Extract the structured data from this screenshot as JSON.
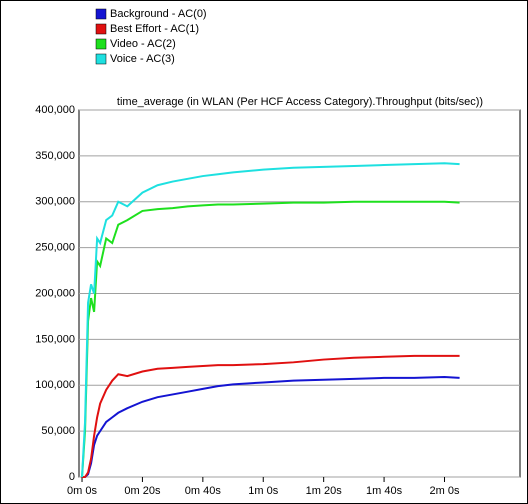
{
  "chart_data": {
    "type": "line",
    "title": "time_average (in WLAN (Per HCF Access Category).Throughput (bits/sec))",
    "x": [
      0,
      1,
      2,
      3,
      4,
      5,
      6,
      8,
      10,
      12,
      15,
      20,
      25,
      30,
      35,
      40,
      45,
      50,
      60,
      70,
      80,
      90,
      100,
      110,
      120,
      125
    ],
    "series": [
      {
        "name": "Background - AC(0)",
        "color": "#1414d2",
        "values": [
          0,
          0,
          3000,
          15000,
          35000,
          45000,
          50000,
          60000,
          65000,
          70000,
          75000,
          82000,
          87000,
          90000,
          93000,
          96000,
          99000,
          101000,
          103000,
          105000,
          106000,
          107000,
          108000,
          108000,
          109000,
          108000
        ]
      },
      {
        "name": "Best Effort - AC(1)",
        "color": "#e01010",
        "values": [
          0,
          0,
          5000,
          20000,
          45000,
          65000,
          80000,
          95000,
          105000,
          112000,
          110000,
          115000,
          118000,
          119000,
          120000,
          121000,
          122000,
          122000,
          123000,
          125000,
          128000,
          130000,
          131000,
          132000,
          132000,
          132000
        ]
      },
      {
        "name": "Video - AC(2)",
        "color": "#1ee01e",
        "values": [
          0,
          50000,
          170000,
          195000,
          180000,
          235000,
          230000,
          260000,
          255000,
          275000,
          280000,
          290000,
          292000,
          293000,
          295000,
          296000,
          297000,
          297000,
          298000,
          299000,
          299000,
          300000,
          300000,
          300000,
          300000,
          299000
        ]
      },
      {
        "name": "Voice - AC(3)",
        "color": "#1ee0e0",
        "values": [
          0,
          60000,
          190000,
          210000,
          200000,
          260000,
          255000,
          280000,
          285000,
          300000,
          295000,
          310000,
          318000,
          322000,
          325000,
          328000,
          330000,
          332000,
          335000,
          337000,
          338000,
          339000,
          340000,
          341000,
          342000,
          341000
        ]
      }
    ],
    "xlim": [
      -1,
      145
    ],
    "xticks": [
      {
        "value": 0,
        "label": "0m 0s"
      },
      {
        "value": 20,
        "label": "0m 20s"
      },
      {
        "value": 40,
        "label": "0m 40s"
      },
      {
        "value": 60,
        "label": "1m 0s"
      },
      {
        "value": 80,
        "label": "1m 20s"
      },
      {
        "value": 100,
        "label": "1m 40s"
      },
      {
        "value": 120,
        "label": "2m 0s"
      }
    ],
    "ylim": [
      0,
      400000
    ],
    "yticks": [
      {
        "value": 0,
        "label": "0"
      },
      {
        "value": 50000,
        "label": "50,000"
      },
      {
        "value": 100000,
        "label": "100,000"
      },
      {
        "value": 150000,
        "label": "150,000"
      },
      {
        "value": 200000,
        "label": "200,000"
      },
      {
        "value": 250000,
        "label": "250,000"
      },
      {
        "value": 300000,
        "label": "300,000"
      },
      {
        "value": 350000,
        "label": "350,000"
      },
      {
        "value": 400000,
        "label": "400,000"
      }
    ],
    "grid": true
  }
}
